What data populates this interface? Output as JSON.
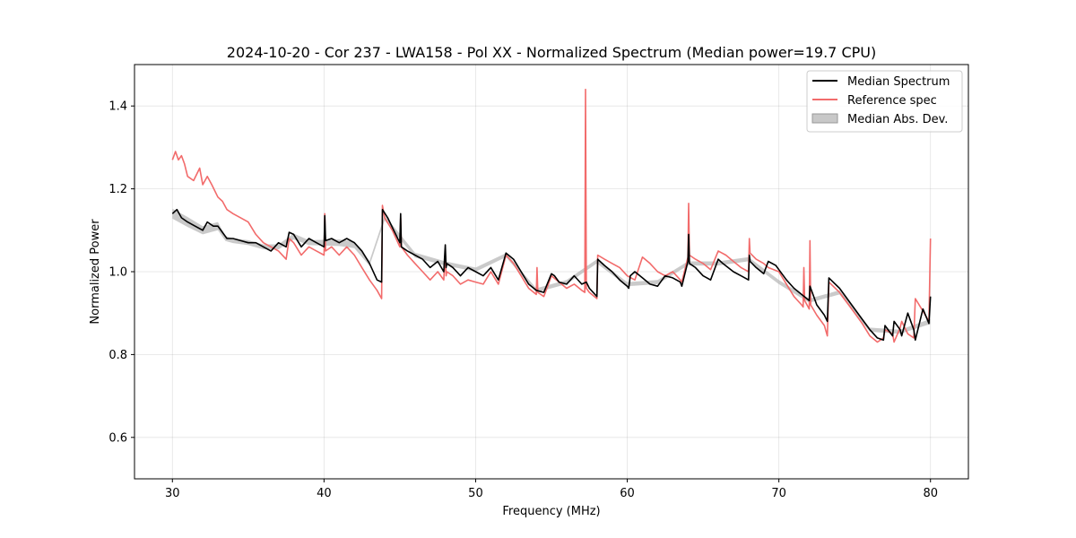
{
  "chart_data": {
    "type": "line",
    "title": "2024-10-20 - Cor 237 - LWA158 - Pol XX - Normalized Spectrum (Median power=19.7 CPU)",
    "xlabel": "Frequency (MHz)",
    "ylabel": "Normalized Power",
    "xlim": [
      27.5,
      82.5
    ],
    "ylim": [
      0.5,
      1.5
    ],
    "xticks": [
      30,
      40,
      50,
      60,
      70,
      80
    ],
    "yticks": [
      0.6,
      0.8,
      1.0,
      1.2,
      1.4
    ],
    "grid": true,
    "legend_position": "top-right",
    "legend": [
      "Median Spectrum",
      "Reference spec",
      "Median Abs. Dev."
    ],
    "colors": {
      "median": "#000000",
      "reference": "#f26b6b",
      "mad": "#b3b3b3"
    },
    "series": [
      {
        "name": "Median Spectrum",
        "x": [
          30.0,
          30.3,
          30.6,
          31.0,
          31.5,
          32.0,
          32.3,
          32.7,
          33.0,
          33.6,
          34.0,
          34.5,
          35.0,
          35.5,
          36.0,
          36.5,
          37.0,
          37.5,
          37.7,
          38.0,
          38.5,
          39.0,
          39.5,
          40.0,
          40.05,
          40.1,
          40.5,
          41.0,
          41.5,
          42.0,
          42.5,
          43.0,
          43.5,
          43.8,
          43.85,
          44.2,
          44.6,
          45.0,
          45.05,
          45.1,
          45.5,
          46.0,
          46.5,
          47.0,
          47.5,
          47.9,
          48.0,
          48.05,
          48.1,
          48.5,
          49.0,
          49.5,
          50.0,
          50.5,
          51.0,
          51.5,
          52.0,
          52.5,
          53.0,
          53.5,
          54.0,
          54.5,
          55.0,
          55.2,
          55.5,
          56.0,
          56.5,
          57.0,
          57.3,
          57.5,
          58.0,
          58.05,
          58.5,
          59.0,
          59.5,
          60.0,
          60.1,
          60.2,
          60.5,
          61.0,
          61.5,
          62.0,
          62.3,
          62.5,
          63.0,
          63.5,
          63.6,
          64.0,
          64.05,
          64.1,
          64.5,
          65.0,
          65.5,
          66.0,
          66.3,
          67.0,
          67.5,
          68.0,
          68.05,
          68.1,
          68.5,
          69.0,
          69.3,
          69.8,
          70.0,
          70.5,
          71.0,
          71.5,
          72.0,
          72.05,
          72.5,
          73.0,
          73.2,
          73.3,
          74.0,
          74.5,
          75.0,
          75.5,
          76.0,
          76.5,
          76.9,
          77.0,
          77.5,
          77.6,
          78.0,
          78.1,
          78.5,
          78.9,
          79.0,
          79.5,
          79.9,
          80.0
        ],
        "y": [
          1.14,
          1.15,
          1.13,
          1.12,
          1.11,
          1.1,
          1.12,
          1.11,
          1.11,
          1.08,
          1.08,
          1.075,
          1.07,
          1.07,
          1.06,
          1.05,
          1.07,
          1.06,
          1.095,
          1.09,
          1.06,
          1.08,
          1.07,
          1.06,
          1.135,
          1.075,
          1.08,
          1.07,
          1.08,
          1.07,
          1.05,
          1.02,
          0.98,
          0.975,
          1.15,
          1.13,
          1.1,
          1.07,
          1.14,
          1.06,
          1.05,
          1.04,
          1.03,
          1.01,
          1.025,
          1.0,
          1.065,
          1.01,
          1.02,
          1.01,
          0.99,
          1.01,
          1.0,
          0.99,
          1.01,
          0.98,
          1.045,
          1.03,
          1.0,
          0.97,
          0.955,
          0.95,
          0.995,
          0.99,
          0.975,
          0.97,
          0.99,
          0.97,
          0.975,
          0.96,
          0.94,
          1.03,
          1.015,
          1.0,
          0.98,
          0.965,
          0.96,
          0.99,
          1.0,
          0.985,
          0.97,
          0.965,
          0.98,
          0.99,
          0.985,
          0.975,
          0.965,
          1.025,
          1.09,
          1.02,
          1.01,
          0.99,
          0.98,
          1.03,
          1.02,
          1.0,
          0.99,
          0.98,
          1.04,
          1.025,
          1.01,
          0.995,
          1.025,
          1.015,
          1.005,
          0.98,
          0.96,
          0.945,
          0.93,
          0.965,
          0.92,
          0.895,
          0.88,
          0.985,
          0.96,
          0.935,
          0.91,
          0.885,
          0.86,
          0.84,
          0.835,
          0.87,
          0.845,
          0.88,
          0.86,
          0.845,
          0.9,
          0.86,
          0.835,
          0.91,
          0.875,
          0.94
        ]
      },
      {
        "name": "Reference spec",
        "x": [
          30.0,
          30.2,
          30.4,
          30.6,
          30.8,
          31.0,
          31.4,
          31.8,
          32.0,
          32.3,
          32.6,
          33.0,
          33.3,
          33.6,
          34.0,
          34.5,
          35.0,
          35.5,
          36.0,
          36.5,
          37.0,
          37.5,
          37.7,
          38.0,
          38.5,
          39.0,
          39.5,
          40.0,
          40.05,
          40.1,
          40.5,
          41.0,
          41.5,
          42.0,
          42.5,
          43.0,
          43.5,
          43.8,
          43.85,
          44.0,
          44.5,
          45.0,
          45.05,
          45.1,
          45.5,
          46.0,
          46.5,
          47.0,
          47.5,
          47.9,
          48.0,
          48.05,
          48.1,
          48.5,
          49.0,
          49.5,
          50.0,
          50.5,
          51.0,
          51.5,
          52.0,
          52.5,
          53.0,
          53.5,
          54.0,
          54.05,
          54.1,
          54.5,
          55.0,
          55.5,
          56.0,
          56.5,
          57.0,
          57.2,
          57.25,
          57.3,
          57.5,
          58.0,
          58.05,
          58.5,
          59.0,
          59.5,
          60.0,
          60.5,
          61.0,
          61.5,
          62.0,
          62.5,
          63.0,
          63.5,
          63.6,
          64.0,
          64.05,
          64.1,
          64.5,
          65.0,
          65.5,
          66.0,
          66.5,
          67.0,
          67.5,
          68.0,
          68.05,
          68.1,
          68.5,
          69.0,
          69.3,
          70.0,
          70.5,
          71.0,
          71.5,
          71.6,
          71.65,
          71.7,
          72.0,
          72.05,
          72.1,
          72.5,
          73.0,
          73.2,
          73.3,
          74.0,
          74.5,
          75.0,
          75.5,
          76.0,
          76.5,
          76.9,
          77.0,
          77.5,
          77.6,
          78.0,
          78.1,
          78.5,
          78.9,
          79.0,
          79.5,
          79.9,
          80.0
        ],
        "y": [
          1.27,
          1.29,
          1.27,
          1.28,
          1.26,
          1.23,
          1.22,
          1.25,
          1.21,
          1.23,
          1.21,
          1.18,
          1.17,
          1.15,
          1.14,
          1.13,
          1.12,
          1.09,
          1.07,
          1.06,
          1.05,
          1.03,
          1.08,
          1.07,
          1.04,
          1.06,
          1.05,
          1.04,
          1.14,
          1.05,
          1.06,
          1.04,
          1.06,
          1.04,
          1.01,
          0.98,
          0.955,
          0.935,
          1.16,
          1.13,
          1.1,
          1.06,
          1.13,
          1.06,
          1.04,
          1.02,
          1.0,
          0.98,
          1.0,
          0.98,
          1.05,
          0.99,
          1.0,
          0.99,
          0.97,
          0.98,
          0.975,
          0.97,
          1.0,
          0.97,
          1.04,
          1.02,
          0.99,
          0.96,
          0.945,
          1.01,
          0.95,
          0.94,
          0.99,
          0.975,
          0.96,
          0.97,
          0.955,
          0.95,
          1.44,
          0.96,
          0.95,
          0.935,
          1.04,
          1.03,
          1.02,
          1.01,
          0.99,
          0.98,
          1.035,
          1.02,
          1.0,
          0.99,
          1.0,
          0.98,
          0.975,
          1.035,
          1.165,
          1.04,
          1.03,
          1.02,
          1.005,
          1.05,
          1.04,
          1.025,
          1.01,
          1.0,
          1.08,
          1.045,
          1.03,
          1.02,
          1.01,
          1.0,
          0.97,
          0.94,
          0.92,
          0.915,
          1.01,
          0.93,
          0.91,
          1.075,
          0.92,
          0.895,
          0.87,
          0.845,
          0.975,
          0.95,
          0.925,
          0.9,
          0.875,
          0.845,
          0.83,
          0.84,
          0.86,
          0.85,
          0.83,
          0.865,
          0.88,
          0.85,
          0.84,
          0.935,
          0.905,
          0.88,
          1.08
        ]
      }
    ],
    "mad_band": {
      "x": [
        30.0,
        31.0,
        32.0,
        33.0,
        33.5,
        34.0,
        35.0,
        36.0,
        37.0,
        38.0,
        39.0,
        40.0,
        41.0,
        42.0,
        43.0,
        44.0,
        46.0,
        48.0,
        50.0,
        52.0,
        54.0,
        56.0,
        58.0,
        60.0,
        62.0,
        64.0,
        66.0,
        68.0,
        70.0,
        72.0,
        74.0,
        76.0,
        78.0,
        80.0
      ],
      "y": [
        1.14,
        1.12,
        1.1,
        1.11,
        1.08,
        1.075,
        1.07,
        1.06,
        1.06,
        1.085,
        1.07,
        1.07,
        1.07,
        1.065,
        1.02,
        1.13,
        1.04,
        1.02,
        1.005,
        1.04,
        0.955,
        0.975,
        1.025,
        0.97,
        0.975,
        1.02,
        1.02,
        1.03,
        0.975,
        0.93,
        0.95,
        0.86,
        0.855,
        0.88
      ],
      "dev": [
        0.012,
        0.012,
        0.01,
        0.01,
        0.006,
        0.006,
        0.006,
        0.006,
        0.006,
        0.007,
        0.006,
        0.007,
        0.008,
        0.008,
        0.006,
        0.006,
        0.006,
        0.005,
        0.005,
        0.005,
        0.005,
        0.005,
        0.005,
        0.005,
        0.005,
        0.005,
        0.005,
        0.005,
        0.005,
        0.005,
        0.005,
        0.005,
        0.005,
        0.006
      ]
    }
  }
}
